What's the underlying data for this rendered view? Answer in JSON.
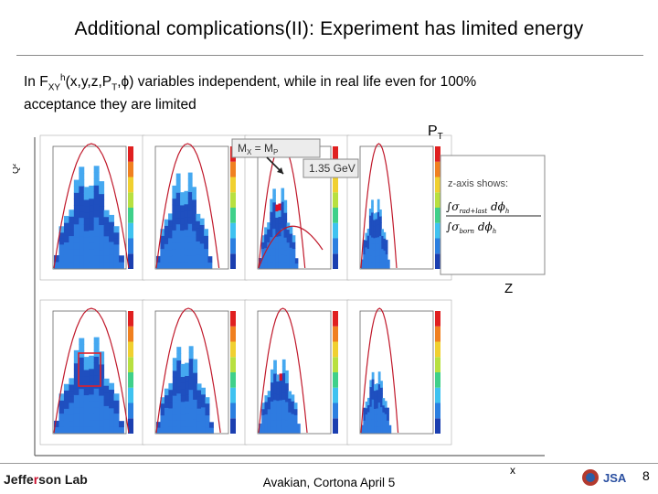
{
  "slide": {
    "title": "Additional complications(II): Experiment has limited energy",
    "subtitle_line1_pre": "In F",
    "subtitle_sub1": "XY",
    "subtitle_sup1": "h",
    "subtitle_line1_mid": "(x,y,z,P",
    "subtitle_sub2": "T",
    "subtitle_line1_post": ",ϕ)  variables independent, while in real life even for 100%",
    "subtitle_line2": "acceptance they are limited",
    "footer_text": "Avakian, Cortona  April 5",
    "page_number": "8",
    "logo_text_a": "Jeffe",
    "logo_text_b": "r",
    "logo_text_c": "son Lab"
  },
  "figure": {
    "y_axis_label": "Q²",
    "x_axis_label": "x",
    "row_label_pt": "P",
    "row_label_pt_sub": "T",
    "z_label": "Z",
    "mx_label": "M",
    "mx_sub": "X",
    "mx_eq": " = M",
    "mp_sub": "P",
    "energy_label": "1.35 GeV",
    "zaxis_label": "z-axis shows:",
    "formula_top": "∫σ",
    "formula_top_sub": "rad+last",
    "formula_top_end": " dϕ",
    "formula_top_end_sub": "h",
    "formula_bottom": "∫σ",
    "formula_bottom_sub": "born",
    "formula_bottom_end": " dϕ",
    "formula_bottom_end_sub": "h"
  },
  "colors": {
    "hist_dark": "#1f4fbf",
    "hist_mid": "#2e7be0",
    "hist_light": "#45a8f0",
    "hist_red": "#e0102a",
    "curve": "#c0182a",
    "frame": "#666666"
  }
}
